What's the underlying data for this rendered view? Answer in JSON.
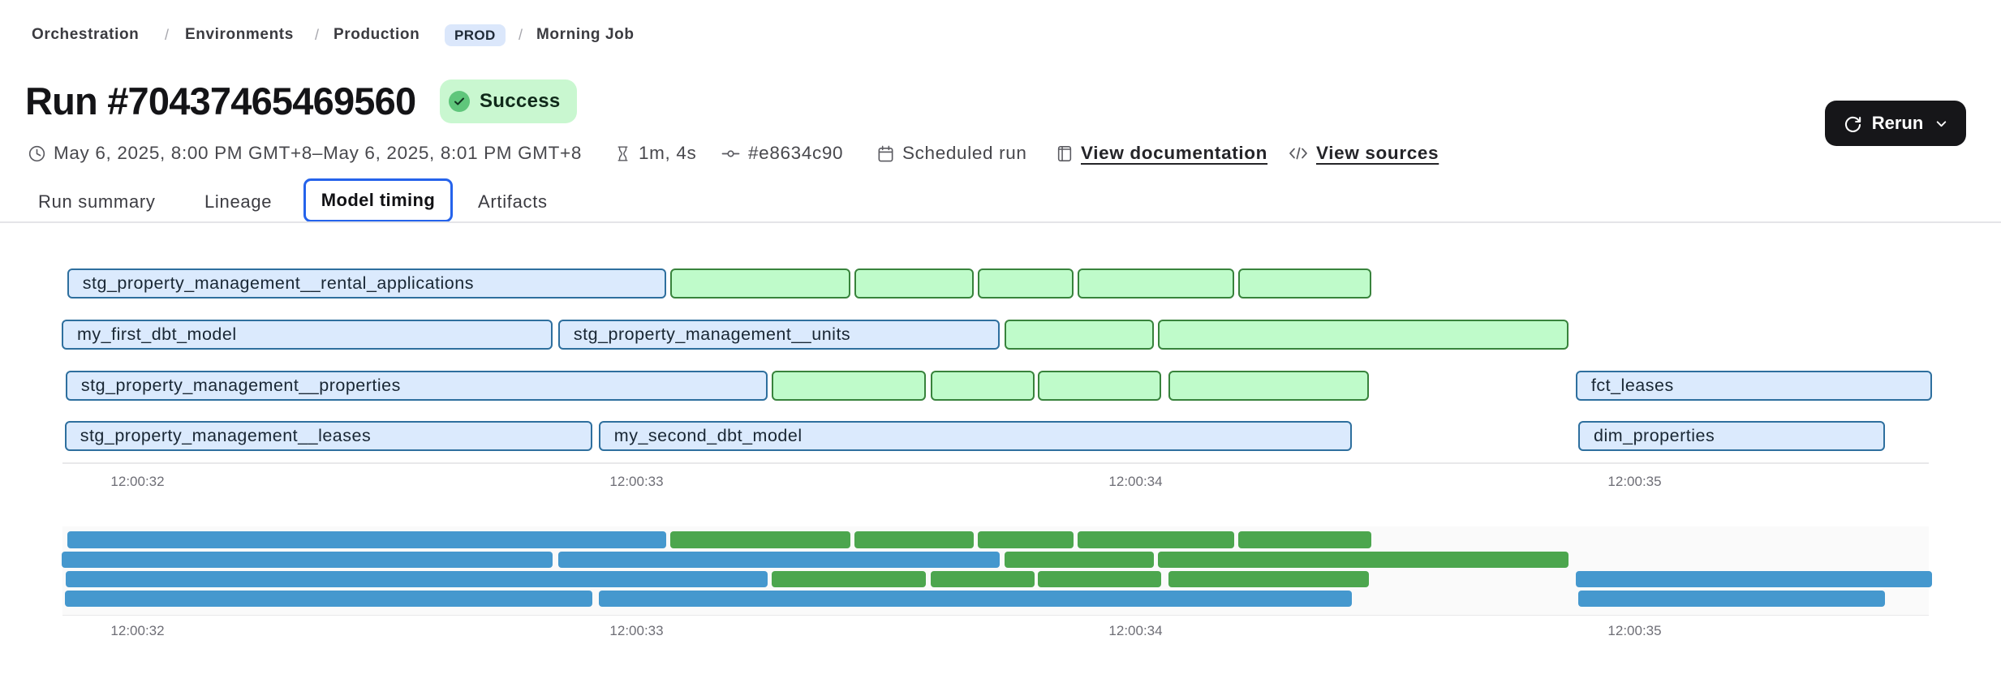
{
  "breadcrumb": {
    "separator": "/",
    "orchestration": "Orchestration",
    "environments": "Environments",
    "production": "Production",
    "env_badge": "PROD",
    "job": "Morning Job"
  },
  "header": {
    "title": "Run #70437465469560",
    "status": {
      "label": "Success",
      "badge_bg": "#c9f7d0",
      "icon_color": "#5fc67b"
    },
    "rerun_label": "Rerun",
    "meta": [
      {
        "icon": "clock-icon",
        "text": "May 6, 2025, 8:00 PM GMT+8–May 6, 2025, 8:01 PM GMT+8",
        "link": false
      },
      {
        "icon": "hourglass-icon",
        "text": "1m, 4s",
        "link": false
      },
      {
        "icon": "commit-icon",
        "text": "#e8634c90",
        "link": false
      },
      {
        "icon": "calendar-icon",
        "text": "Scheduled run",
        "link": false
      },
      {
        "icon": "document-icon",
        "text": "View documentation",
        "link": true
      },
      {
        "icon": "code-icon",
        "text": "View sources",
        "link": true
      }
    ]
  },
  "tabs": {
    "items": [
      {
        "label": "Run summary",
        "active": false
      },
      {
        "label": "Lineage",
        "active": false
      },
      {
        "label": "Model timing",
        "active": true
      },
      {
        "label": "Artifacts",
        "active": false
      }
    ],
    "active_border_color": "#2563eb"
  },
  "chart_data": {
    "type": "gantt",
    "title": "Model timing",
    "xlabel": "",
    "ylabel": "",
    "x_ticks": [
      "12:00:32",
      "12:00:33",
      "12:00:34",
      "12:00:35"
    ],
    "x_tick_seconds": [
      32,
      33,
      34,
      35
    ],
    "x_range_seconds": [
      31.7,
      35.73
    ],
    "grid": false,
    "legend": false,
    "views": [
      "detail",
      "overview"
    ],
    "colors": {
      "model_fill": "#dbeafd",
      "model_border": "#2e6f9e",
      "test_fill": "#bffbca",
      "test_border": "#38833c",
      "overview_model": "#4598ce",
      "overview_test": "#4ca64e"
    },
    "rows": [
      {
        "segments": [
          {
            "label": "stg_property_management__rental_applications",
            "color": "blue",
            "start": 31.859,
            "end": 33.06
          },
          {
            "label": "",
            "color": "green",
            "start": 33.068,
            "end": 33.428
          },
          {
            "label": "",
            "color": "green",
            "start": 33.437,
            "end": 33.675
          },
          {
            "label": "",
            "color": "green",
            "start": 33.683,
            "end": 33.876
          },
          {
            "label": "",
            "color": "green",
            "start": 33.884,
            "end": 34.198
          },
          {
            "label": "",
            "color": "green",
            "start": 34.206,
            "end": 34.473
          }
        ]
      },
      {
        "segments": [
          {
            "label": "my_first_dbt_model",
            "color": "blue",
            "start": 31.848,
            "end": 32.831
          },
          {
            "label": "stg_property_management__units",
            "color": "blue",
            "start": 32.843,
            "end": 33.728
          },
          {
            "label": "",
            "color": "green",
            "start": 33.737,
            "end": 34.036
          },
          {
            "label": "",
            "color": "green",
            "start": 34.045,
            "end": 34.868
          }
        ]
      },
      {
        "segments": [
          {
            "label": "stg_property_management__properties",
            "color": "blue",
            "start": 31.856,
            "end": 33.263
          },
          {
            "label": "",
            "color": "green",
            "start": 33.271,
            "end": 33.58
          },
          {
            "label": "",
            "color": "green",
            "start": 33.589,
            "end": 33.797
          },
          {
            "label": "",
            "color": "green",
            "start": 33.804,
            "end": 34.051
          },
          {
            "label": "",
            "color": "green",
            "start": 34.066,
            "end": 34.468
          },
          {
            "label": "fct_leases",
            "color": "blue",
            "start": 34.882,
            "end": 35.596
          }
        ]
      },
      {
        "segments": [
          {
            "label": "stg_property_management__leases",
            "color": "blue",
            "start": 31.854,
            "end": 32.912
          },
          {
            "label": "my_second_dbt_model",
            "color": "blue",
            "start": 32.924,
            "end": 34.433
          },
          {
            "label": "dim_properties",
            "color": "blue",
            "start": 34.887,
            "end": 35.501
          }
        ]
      }
    ]
  }
}
